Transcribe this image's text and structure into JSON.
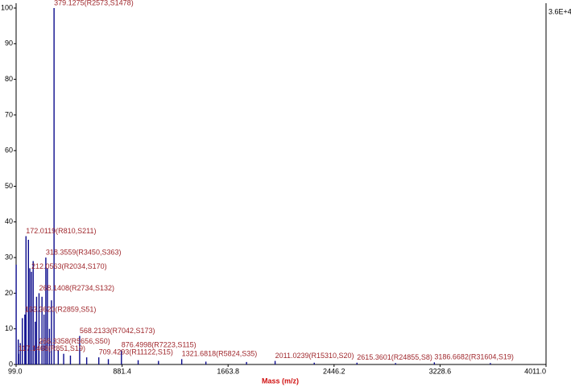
{
  "chart_data": {
    "type": "spectrum",
    "xlabel": "Mass (m/z)",
    "annotation": "3.6E+4",
    "color": "#0a0a8c",
    "label_color": "#a0282d",
    "xlim": [
      99.0,
      4011.0
    ],
    "xticks": [
      {
        "value": 99.0,
        "label": "99.0"
      },
      881.4,
      1663.8,
      2446.2,
      3228.6,
      {
        "value": 4011.0,
        "label": "4011.0"
      }
    ],
    "ylim": [
      0,
      100
    ],
    "yticks": [
      0,
      10,
      20,
      30,
      40,
      50,
      60,
      70,
      80,
      90,
      100
    ],
    "x": [
      99.5,
      115,
      117.1468,
      130,
      145,
      163.362,
      172.0119,
      190,
      200,
      212.0563,
      225,
      240,
      250,
      266.3358,
      268.1408,
      290,
      305,
      318.3559,
      330,
      345,
      360,
      379.1275,
      410,
      450,
      500,
      568.2133,
      620,
      709.4293,
      780,
      876.4998,
      1000,
      1150,
      1321.6818,
      1500,
      1800,
      2011.0239,
      2300,
      2615.3601,
      2900,
      3186.6682,
      3600
    ],
    "values": [
      28,
      7,
      3,
      6,
      13,
      14,
      36,
      35,
      27,
      26,
      29,
      12,
      19,
      5,
      20,
      19,
      14,
      30,
      27,
      10,
      18,
      100,
      4,
      3,
      2.5,
      8,
      2,
      2,
      1.5,
      4,
      1.2,
      1,
      1.5,
      0.8,
      0.7,
      1,
      0.5,
      0.5,
      0.4,
      0.6,
      0.4
    ],
    "labels": [
      null,
      null,
      "117.1468(R851,S19)",
      null,
      null,
      "163.3620(R2859,S51)",
      "172.0119(R810,S211)",
      null,
      null,
      "212.0563(R2034,S170)",
      null,
      null,
      null,
      "266.3358(R5656,S50)",
      "268.1408(R2734,S132)",
      null,
      null,
      "318.3559(R3450,S363)",
      null,
      null,
      null,
      "379.1275(R2573,S1478)",
      null,
      null,
      null,
      "568.2133(R7042,S173)",
      null,
      "709.4293(R11122,S15)",
      null,
      "876.4998(R7223,S115)",
      null,
      null,
      "1321.6818(R5824,S35)",
      null,
      null,
      "2011.0239(R15310,S20)",
      null,
      "2615.3601(R24855,S8)",
      null,
      "3186.6682(R31604,S19)",
      null
    ]
  }
}
